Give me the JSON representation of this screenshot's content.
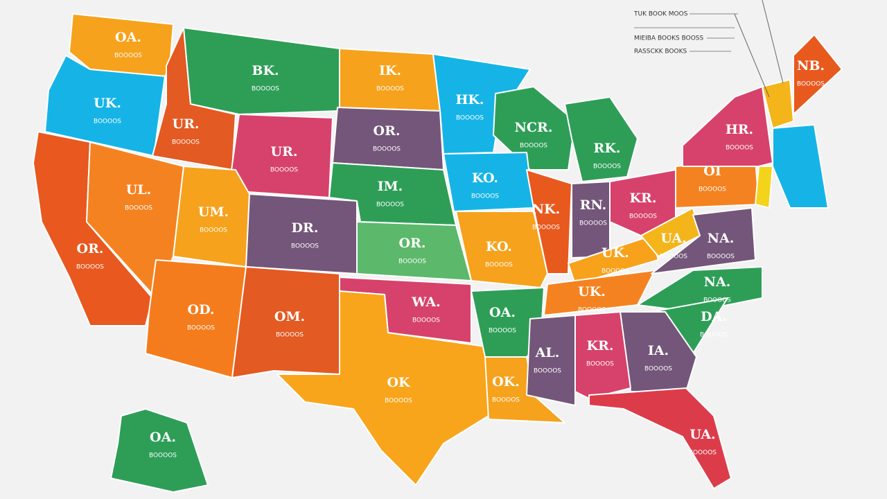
{
  "states": [
    {
      "label": "OA.",
      "sub": "BOOOOS"
    },
    {
      "label": "UK.",
      "sub": "BOOOOS"
    },
    {
      "label": "UR.",
      "sub": "BOOOOS"
    },
    {
      "label": "BK.",
      "sub": "BOOOOS"
    },
    {
      "label": "IK.",
      "sub": "BOOOOS"
    },
    {
      "label": "HK.",
      "sub": "BOOOOS"
    },
    {
      "label": "UR.",
      "sub": "BOOOOS"
    },
    {
      "label": "OR.",
      "sub": "BOOOOS"
    },
    {
      "label": "NCR.",
      "sub": "BOOOOS"
    },
    {
      "label": "RK.",
      "sub": "BOOOOS"
    },
    {
      "label": "OR.",
      "sub": "BOOOOS"
    },
    {
      "label": "UL.",
      "sub": "BOOOOS"
    },
    {
      "label": "UM.",
      "sub": "BOOOOS"
    },
    {
      "label": "DR.",
      "sub": "BOOOOS"
    },
    {
      "label": "IM.",
      "sub": "BOOOOS"
    },
    {
      "label": "KO.",
      "sub": "BOOOOS"
    },
    {
      "label": "NK.",
      "sub": "BOOOOS"
    },
    {
      "label": "RN.",
      "sub": "BOOOOS"
    },
    {
      "label": "KR.",
      "sub": "BOOOOS"
    },
    {
      "label": "OI",
      "sub": "BOOOOS"
    },
    {
      "label": "HR.",
      "sub": "BOOOOS"
    },
    {
      "label": "NB.",
      "sub": "BOOOOS"
    },
    {
      "label": "OR.",
      "sub": "BOOOOS"
    },
    {
      "label": "KO.",
      "sub": "BOOOOS"
    },
    {
      "label": "UK.",
      "sub": "BOOOOS"
    },
    {
      "label": "UA.",
      "sub": "BOOOOS"
    },
    {
      "label": "NA.",
      "sub": "BOOOOS"
    },
    {
      "label": "OD.",
      "sub": "BOOOOS"
    },
    {
      "label": "OM.",
      "sub": "BOOOOS"
    },
    {
      "label": "WA.",
      "sub": "BOOOOS"
    },
    {
      "label": "OA.",
      "sub": "BOOOOS"
    },
    {
      "label": "UK.",
      "sub": "BOOOOS"
    },
    {
      "label": "NA.",
      "sub": "BOOOOS"
    },
    {
      "label": "DA.",
      "sub": "BOOOOS"
    },
    {
      "label": "AL.",
      "sub": "BOOOOS"
    },
    {
      "label": "KR.",
      "sub": "BOOOOS"
    },
    {
      "label": "IA.",
      "sub": "BOOOOS"
    },
    {
      "label": "OK",
      "sub": "BOOOOS"
    },
    {
      "label": "OK.",
      "sub": "BOOOOS"
    },
    {
      "label": "UA.",
      "sub": "BOOOOS"
    },
    {
      "label": "OA.",
      "sub": "BOOOOS"
    }
  ],
  "legend": [
    "TUK BOOK MOOS",
    "MIEIBA BOOKS BOOSS",
    "RASSCKK BOOKS"
  ]
}
